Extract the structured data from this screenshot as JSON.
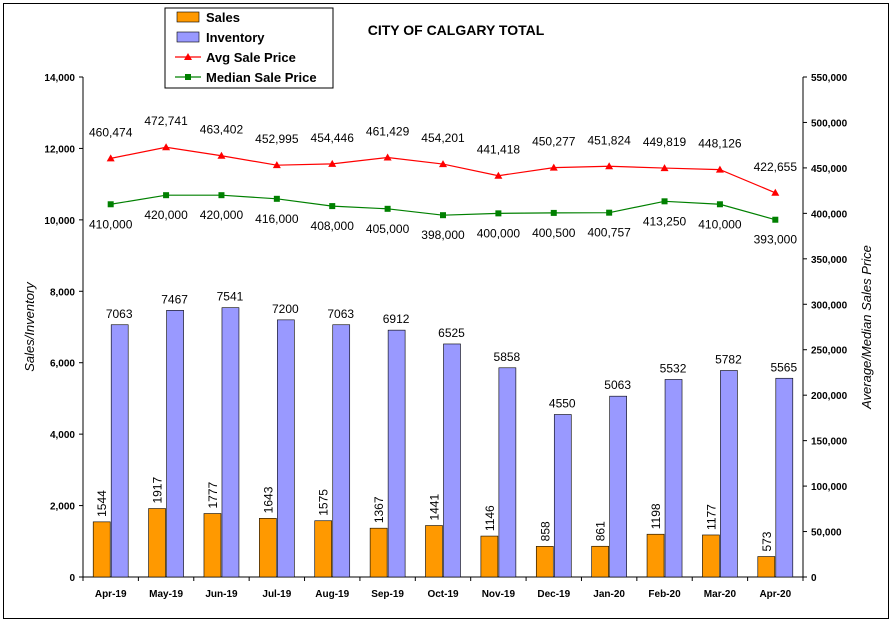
{
  "chart_data": {
    "type": "bar",
    "title": "CITY OF CALGARY TOTAL",
    "categories": [
      "Apr-19",
      "May-19",
      "Jun-19",
      "Jul-19",
      "Aug-19",
      "Sep-19",
      "Oct-19",
      "Nov-19",
      "Dec-19",
      "Jan-20",
      "Feb-20",
      "Mar-20",
      "Apr-20"
    ],
    "y_left_label": "Sales/Inventory",
    "y_right_label": "Average/Median Sales Price",
    "y_left_range": [
      0,
      14000
    ],
    "y_right_range": [
      0,
      550000
    ],
    "y_left_ticks": [
      "0",
      "2,000",
      "4,000",
      "6,000",
      "8,000",
      "10,000",
      "12,000",
      "14,000"
    ],
    "y_right_ticks": [
      "0",
      "50,000",
      "100,000",
      "150,000",
      "200,000",
      "250,000",
      "300,000",
      "350,000",
      "400,000",
      "450,000",
      "500,000",
      "550,000"
    ],
    "legend_position": "top-left",
    "grid": false,
    "series": [
      {
        "name": "Sales",
        "kind": "bar",
        "axis": "left",
        "color": "#FF9900",
        "values": [
          1544,
          1917,
          1777,
          1643,
          1575,
          1367,
          1441,
          1146,
          858,
          861,
          1198,
          1177,
          573
        ],
        "labels": [
          "1544",
          "1917",
          "1777",
          "1643",
          "1575",
          "1367",
          "1441",
          "1146",
          "858",
          "861",
          "1198",
          "1177",
          "573"
        ]
      },
      {
        "name": "Inventory",
        "kind": "bar",
        "axis": "left",
        "color": "#9999FF",
        "values": [
          7063,
          7467,
          7541,
          7200,
          7063,
          6912,
          6525,
          5858,
          4550,
          5063,
          5532,
          5782,
          5565
        ],
        "labels": [
          "7063",
          "7467",
          "7541",
          "7200",
          "7063",
          "6912",
          "6525",
          "5858",
          "4550",
          "5063",
          "5532",
          "5782",
          "5565"
        ]
      },
      {
        "name": "Avg Sale Price",
        "kind": "line",
        "axis": "right",
        "color": "#FF0000",
        "marker": "triangle",
        "values": [
          460474,
          472741,
          463402,
          452995,
          454446,
          461429,
          454201,
          441418,
          450277,
          451824,
          449819,
          448126,
          422655
        ],
        "labels": [
          "460,474",
          "472,741",
          "463,402",
          "452,995",
          "454,446",
          "461,429",
          "454,201",
          "441,418",
          "450,277",
          "451,824",
          "449,819",
          "448,126",
          "422,655"
        ]
      },
      {
        "name": "Median Sale Price",
        "kind": "line",
        "axis": "right",
        "color": "#008000",
        "marker": "square",
        "values": [
          410000,
          420000,
          420000,
          416000,
          408000,
          405000,
          398000,
          400000,
          400500,
          400757,
          413250,
          410000,
          393000
        ],
        "labels": [
          "410,000",
          "420,000",
          "420,000",
          "416,000",
          "408,000",
          "405,000",
          "398,000",
          "400,000",
          "400,500",
          "400,757",
          "413,250",
          "410,000",
          "393,000"
        ]
      }
    ]
  }
}
